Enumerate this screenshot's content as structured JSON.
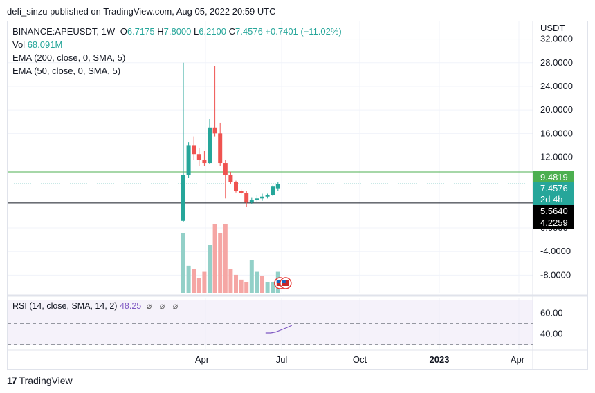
{
  "header": {
    "published": "defi_sinzu published on TradingView.com, Aug 05, 2022 20:59 UTC"
  },
  "legend": {
    "symbol": "BINANCE:APEUSDT, 1W",
    "o_label": "O",
    "o_value": "6.7175",
    "h_label": "H",
    "h_value": "7.8000",
    "l_label": "L",
    "l_value": "6.2100",
    "c_label": "C",
    "c_value": "7.4576",
    "change": "+0.7401 (+11.02%)",
    "vol_label": "Vol",
    "vol_value": "68.091M",
    "ema200": "EMA (200, close, 0, SMA, 5)",
    "ema50": "EMA (50, close, 0, SMA, 5)"
  },
  "rsi_legend": {
    "label": "RSI (14, close, SMA, 14, 2)",
    "value": "48.25",
    "icons": "⌀ ⌀ ⌀"
  },
  "footer": {
    "brand": "TradingView",
    "logo_mark": "17"
  },
  "colors": {
    "up": "#26a69a",
    "down": "#ef5350",
    "up_vol": "#93d0c8",
    "down_vol": "#f5a6a4",
    "green_line": "#4caf50",
    "dotted": "#26a69a",
    "rsi": "#7e57c2"
  },
  "chart_data": {
    "type": "candlestick",
    "currency": "USDT",
    "y_axis": {
      "ticks": [
        "32.0000",
        "28.0000",
        "24.0000",
        "20.0000",
        "16.0000",
        "12.0000",
        "0.0000",
        "-4.0000",
        "-8.0000"
      ],
      "tick_values": [
        32,
        28,
        24,
        20,
        16,
        12,
        0,
        -4,
        -8
      ],
      "range": [
        -11,
        35
      ]
    },
    "x_axis": {
      "ticks": [
        "Apr",
        "Jul",
        "Oct",
        "2023",
        "Apr"
      ]
    },
    "price_labels": [
      {
        "value": 9.4819,
        "text": "9.4819",
        "style": "green"
      },
      {
        "value": 7.4576,
        "text": "7.4576",
        "style": "teal"
      },
      {
        "value": 6.8,
        "text": "2d 4h",
        "style": "teal"
      },
      {
        "value": 5.564,
        "text": "5.5640",
        "style": "black"
      },
      {
        "value": 4.2259,
        "text": "4.2259",
        "style": "black"
      }
    ],
    "horizontal_levels": [
      9.4819,
      5.564,
      4.2259
    ],
    "current_price": 7.4576,
    "candles": [
      {
        "o": 1.2,
        "h": 28.0,
        "l": 1.0,
        "c": 9.0
      },
      {
        "o": 9.0,
        "h": 14.5,
        "l": 8.5,
        "c": 14.0
      },
      {
        "o": 14.0,
        "h": 15.5,
        "l": 11.5,
        "c": 12.5
      },
      {
        "o": 12.5,
        "h": 13.5,
        "l": 10.5,
        "c": 11.5
      },
      {
        "o": 11.5,
        "h": 13.0,
        "l": 10.5,
        "c": 11.0
      },
      {
        "o": 11.0,
        "h": 18.5,
        "l": 10.8,
        "c": 17.0
      },
      {
        "o": 17.0,
        "h": 27.5,
        "l": 15.5,
        "c": 16.0
      },
      {
        "o": 16.0,
        "h": 17.8,
        "l": 10.5,
        "c": 11.0
      },
      {
        "o": 11.0,
        "h": 11.5,
        "l": 5.0,
        "c": 9.0
      },
      {
        "o": 9.0,
        "h": 9.5,
        "l": 7.5,
        "c": 7.8
      },
      {
        "o": 7.8,
        "h": 8.0,
        "l": 6.0,
        "c": 6.3
      },
      {
        "o": 6.3,
        "h": 6.5,
        "l": 5.7,
        "c": 5.9
      },
      {
        "o": 5.9,
        "h": 6.3,
        "l": 3.6,
        "c": 4.3
      },
      {
        "o": 4.3,
        "h": 5.2,
        "l": 4.0,
        "c": 4.8
      },
      {
        "o": 4.8,
        "h": 5.5,
        "l": 4.4,
        "c": 5.0
      },
      {
        "o": 5.0,
        "h": 5.8,
        "l": 4.6,
        "c": 5.3
      },
      {
        "o": 5.3,
        "h": 5.8,
        "l": 5.0,
        "c": 5.6
      },
      {
        "o": 5.6,
        "h": 7.2,
        "l": 5.4,
        "c": 7.0
      },
      {
        "o": 6.7175,
        "h": 7.8,
        "l": 6.21,
        "c": 7.4576
      }
    ],
    "volume_bars": [
      {
        "v": 100,
        "dir": "up"
      },
      {
        "v": 45,
        "dir": "up"
      },
      {
        "v": 40,
        "dir": "down"
      },
      {
        "v": 25,
        "dir": "down"
      },
      {
        "v": 35,
        "dir": "down"
      },
      {
        "v": 80,
        "dir": "up"
      },
      {
        "v": 115,
        "dir": "down"
      },
      {
        "v": 100,
        "dir": "down"
      },
      {
        "v": 115,
        "dir": "down"
      },
      {
        "v": 40,
        "dir": "down"
      },
      {
        "v": 30,
        "dir": "down"
      },
      {
        "v": 22,
        "dir": "down"
      },
      {
        "v": 18,
        "dir": "down"
      },
      {
        "v": 55,
        "dir": "up"
      },
      {
        "v": 35,
        "dir": "up"
      },
      {
        "v": 28,
        "dir": "down"
      },
      {
        "v": 18,
        "dir": "up"
      },
      {
        "v": 18,
        "dir": "up"
      },
      {
        "v": 35,
        "dir": "up"
      }
    ],
    "rsi": {
      "axis_ticks": [
        "60.00",
        "40.00"
      ],
      "tick_values": [
        60,
        40
      ],
      "range": [
        25,
        75
      ],
      "bands": [
        70,
        50,
        30
      ],
      "values": [
        null,
        null,
        null,
        null,
        null,
        null,
        null,
        null,
        null,
        null,
        null,
        null,
        null,
        41,
        41,
        42,
        44,
        46,
        48.25
      ]
    }
  }
}
